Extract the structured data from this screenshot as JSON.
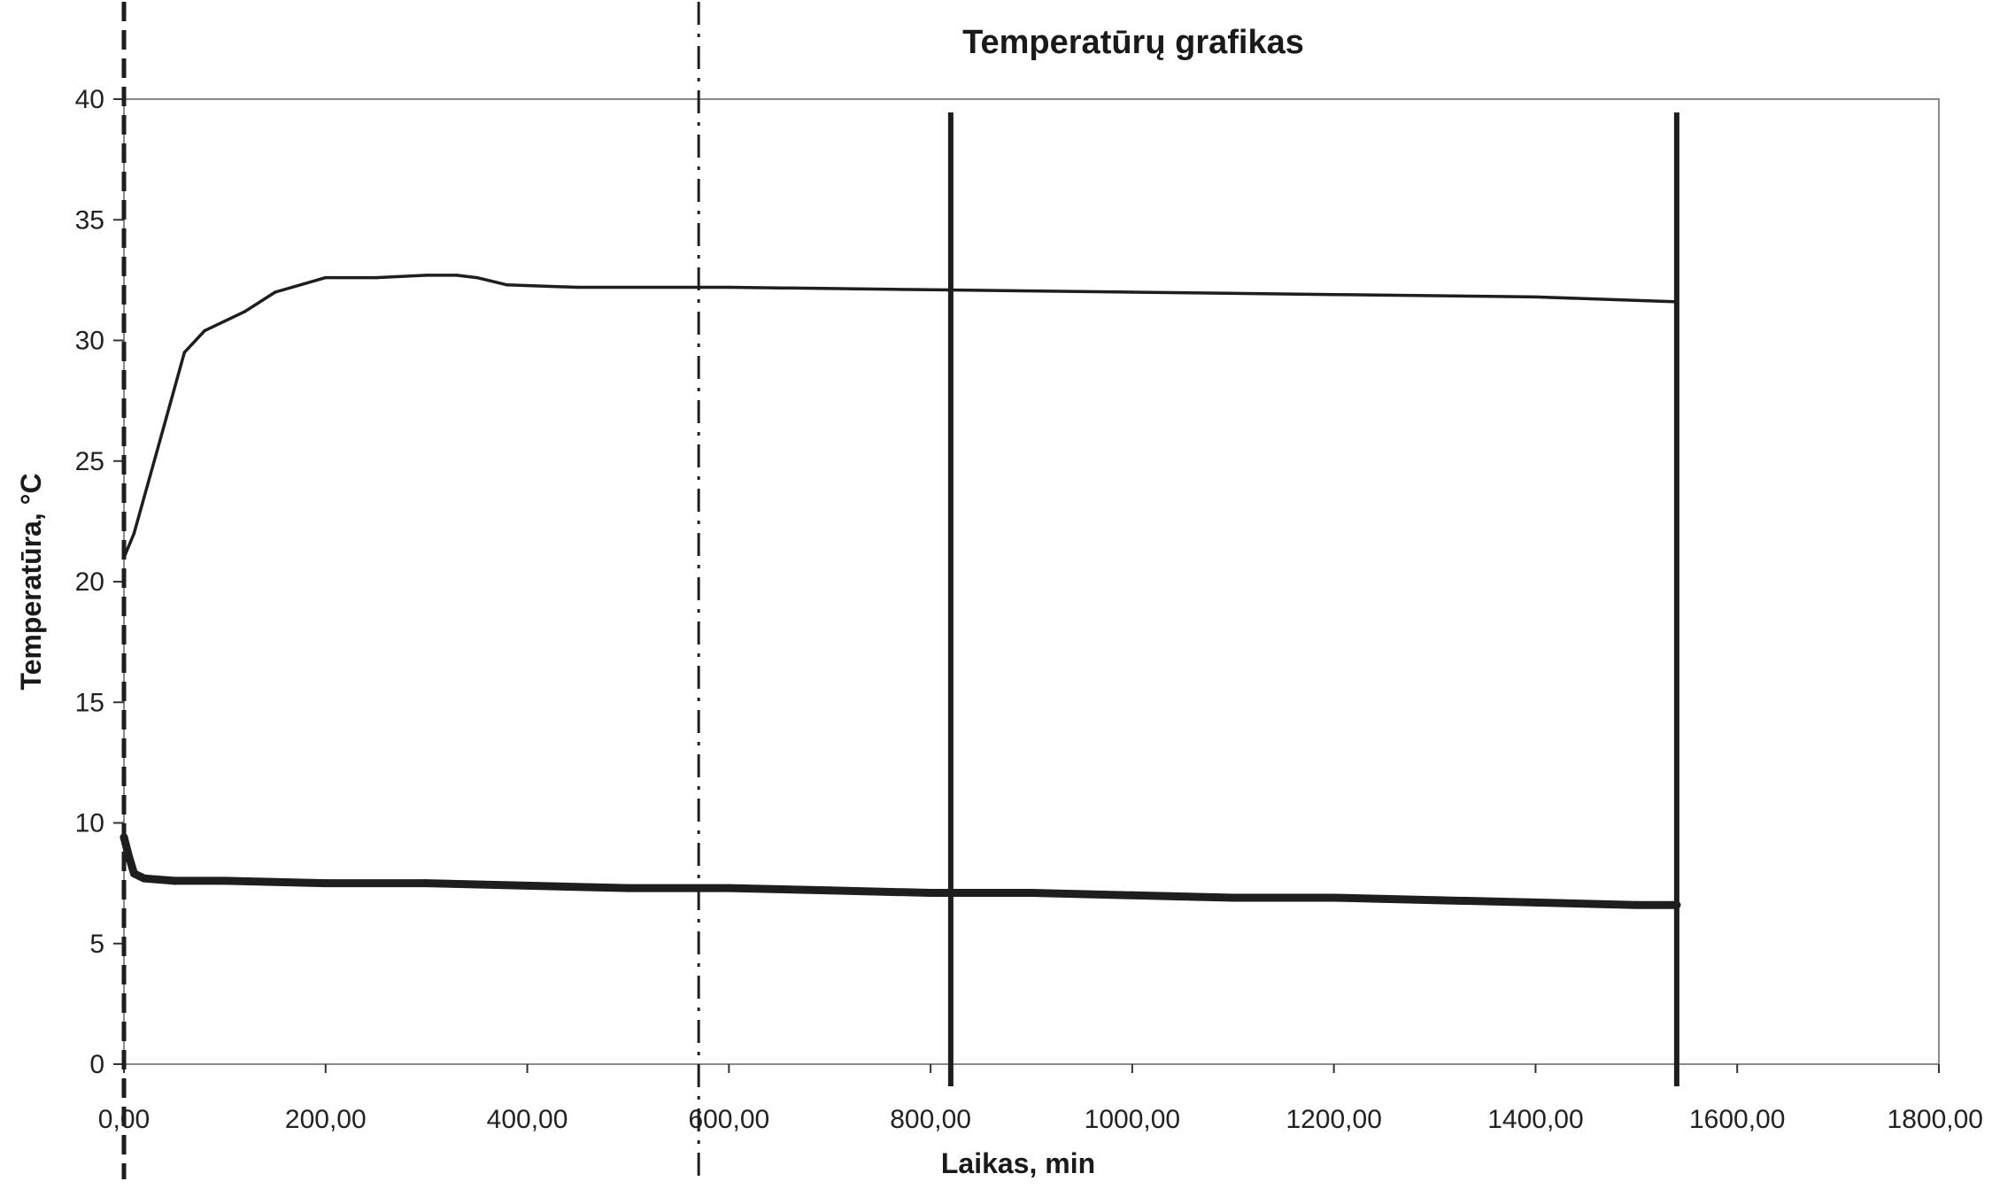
{
  "chart_data": {
    "type": "line",
    "title": "Temperatūrų grafikas",
    "xlabel": "Laikas, min",
    "ylabel": "Temperatūra, °C",
    "xlim": [
      0,
      1800
    ],
    "ylim": [
      0,
      40
    ],
    "x_ticks": [
      "0,00",
      "200,00",
      "400,00",
      "600,00",
      "800,00",
      "1000,00",
      "1200,00",
      "1400,00",
      "1600,00",
      "1800,00"
    ],
    "y_ticks": [
      "0",
      "5",
      "10",
      "15",
      "20",
      "25",
      "30",
      "35",
      "40"
    ],
    "grid": false,
    "legend": "none",
    "series": [
      {
        "color": "#1e1e1e",
        "x": [
          0,
          10,
          20,
          40,
          60,
          80,
          100,
          120,
          150,
          200,
          250,
          300,
          330,
          350,
          380,
          450,
          600,
          800,
          1000,
          1200,
          1400,
          1540
        ],
        "values": [
          21.0,
          22.0,
          23.5,
          26.5,
          29.5,
          30.4,
          30.8,
          31.2,
          32.0,
          32.6,
          32.6,
          32.7,
          32.7,
          32.6,
          32.3,
          32.2,
          32.2,
          32.1,
          32.0,
          31.9,
          31.8,
          31.6
        ]
      },
      {
        "color": "#1e1e1e",
        "x": [
          0,
          5,
          10,
          20,
          50,
          100,
          200,
          300,
          400,
          500,
          600,
          700,
          800,
          900,
          1000,
          1100,
          1200,
          1300,
          1400,
          1500,
          1540
        ],
        "values": [
          9.4,
          8.6,
          7.9,
          7.7,
          7.6,
          7.6,
          7.5,
          7.5,
          7.4,
          7.3,
          7.3,
          7.2,
          7.1,
          7.1,
          7.0,
          6.9,
          6.9,
          6.8,
          6.7,
          6.6,
          6.6
        ]
      }
    ],
    "vertical_markers": [
      {
        "x": 0,
        "style": "dashed"
      },
      {
        "x": 570,
        "style": "dash-dot"
      },
      {
        "x": 820,
        "style": "solid"
      },
      {
        "x": 1540,
        "style": "solid"
      }
    ]
  }
}
